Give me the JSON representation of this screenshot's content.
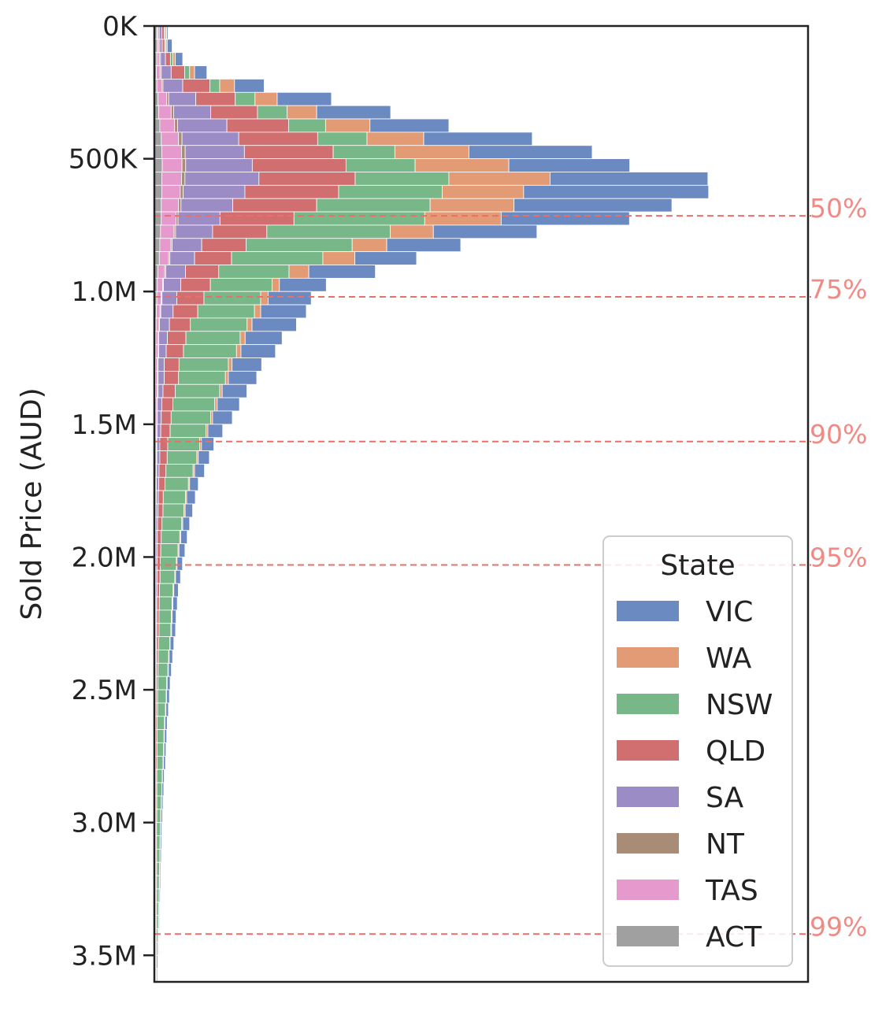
{
  "chart_data": {
    "type": "bar",
    "orientation": "horizontal",
    "stacked": true,
    "ylabel": "Sold Price (AUD)",
    "xlabel": "",
    "ylim": [
      0,
      3600000
    ],
    "y_ticks": [
      {
        "value": 0,
        "label": "0K"
      },
      {
        "value": 500000,
        "label": "500K"
      },
      {
        "value": 1000000,
        "label": "1.0M"
      },
      {
        "value": 1500000,
        "label": "1.5M"
      },
      {
        "value": 2000000,
        "label": "2.0M"
      },
      {
        "value": 2500000,
        "label": "2.5M"
      },
      {
        "value": 3000000,
        "label": "3.0M"
      },
      {
        "value": 3500000,
        "label": "3.5M"
      }
    ],
    "bin_width": 50000,
    "xlim": [
      0,
      2650
    ],
    "legend": {
      "title": "State",
      "placement": "lower-right"
    },
    "series": [
      {
        "name": "ACT",
        "color": "#a0a0a0",
        "values": [
          10,
          12,
          10,
          8,
          10,
          15,
          18,
          22,
          28,
          30,
          32,
          30,
          30,
          28,
          28,
          25,
          22,
          20,
          14,
          12,
          10,
          8,
          7,
          6,
          6,
          5,
          5,
          5,
          4,
          4,
          4,
          3,
          3,
          3,
          3,
          3,
          2,
          2,
          2,
          2,
          2,
          2,
          2,
          2,
          2,
          2,
          2,
          2,
          1,
          1,
          1,
          1,
          1,
          1,
          1,
          1,
          1,
          1,
          1,
          1,
          1,
          1,
          1,
          1,
          1,
          1,
          1,
          1,
          1,
          1,
          1,
          1
        ]
      },
      {
        "name": "TAS",
        "color": "#e699cc",
        "values": [
          5,
          5,
          10,
          15,
          20,
          35,
          50,
          60,
          70,
          80,
          80,
          80,
          75,
          70,
          60,
          55,
          45,
          38,
          28,
          22,
          18,
          15,
          12,
          10,
          10,
          8,
          8,
          8,
          6,
          6,
          5,
          5,
          5,
          5,
          4,
          4,
          4,
          3,
          3,
          3,
          3,
          3,
          3,
          3,
          3,
          3,
          3,
          3,
          3,
          3,
          2,
          2,
          2,
          2,
          2,
          2,
          2,
          2,
          2,
          2,
          2,
          2,
          2,
          2,
          2,
          2,
          2,
          2,
          2,
          2,
          2,
          2
        ]
      },
      {
        "name": "NT",
        "color": "#a88c75",
        "values": [
          5,
          5,
          5,
          5,
          5,
          8,
          10,
          12,
          14,
          15,
          15,
          14,
          12,
          10,
          8,
          6,
          5,
          5,
          4,
          3,
          3,
          3,
          2,
          2,
          2,
          2,
          2,
          2,
          2,
          2,
          2,
          2,
          2,
          1,
          1,
          1,
          1,
          1,
          1,
          1,
          1,
          1,
          1,
          1,
          1,
          1,
          1,
          1,
          1,
          1,
          1,
          1,
          1,
          1,
          1,
          1,
          1,
          1,
          1,
          1,
          1,
          1,
          1,
          1,
          1,
          1,
          1,
          1,
          1,
          1,
          1,
          1
        ]
      },
      {
        "name": "SA",
        "color": "#9c8cc6",
        "values": [
          10,
          10,
          20,
          40,
          80,
          110,
          150,
          200,
          230,
          240,
          270,
          300,
          250,
          210,
          170,
          150,
          120,
          100,
          80,
          70,
          60,
          50,
          40,
          35,
          30,
          25,
          25,
          20,
          18,
          16,
          15,
          12,
          12,
          10,
          10,
          8,
          8,
          7,
          6,
          6,
          5,
          5,
          5,
          4,
          4,
          4,
          3,
          3,
          3,
          3,
          3,
          3,
          2,
          2,
          2,
          2,
          2,
          2,
          2,
          2,
          2,
          2,
          2,
          2,
          2,
          2,
          2,
          2,
          2,
          2,
          2,
          2
        ]
      },
      {
        "name": "QLD",
        "color": "#d06e70",
        "values": [
          10,
          10,
          20,
          55,
          110,
          160,
          190,
          250,
          320,
          360,
          380,
          390,
          380,
          340,
          300,
          220,
          180,
          150,
          135,
          120,
          110,
          100,
          85,
          75,
          70,
          60,
          58,
          50,
          45,
          40,
          38,
          32,
          30,
          28,
          25,
          20,
          20,
          18,
          16,
          14,
          13,
          12,
          10,
          10,
          9,
          9,
          8,
          7,
          7,
          6,
          6,
          6,
          5,
          5,
          5,
          5,
          4,
          4,
          4,
          4,
          3,
          3,
          3,
          3,
          3,
          3,
          3,
          3,
          2,
          2,
          2,
          2
        ]
      },
      {
        "name": "NSW",
        "color": "#78b888",
        "values": [
          5,
          5,
          10,
          20,
          40,
          80,
          120,
          150,
          200,
          250,
          280,
          380,
          420,
          460,
          530,
          500,
          430,
          370,
          285,
          250,
          230,
          230,
          230,
          220,
          215,
          200,
          190,
          180,
          170,
          160,
          145,
          130,
          120,
          110,
          95,
          90,
          85,
          80,
          75,
          70,
          65,
          60,
          55,
          52,
          50,
          48,
          45,
          42,
          40,
          36,
          35,
          32,
          30,
          28,
          26,
          24,
          22,
          20,
          18,
          16,
          15,
          14,
          13,
          12,
          11,
          10,
          9,
          8,
          7,
          6,
          6,
          5
        ]
      },
      {
        "name": "WA",
        "color": "#e39b75",
        "values": [
          5,
          5,
          10,
          20,
          60,
          90,
          120,
          180,
          230,
          300,
          380,
          410,
          330,
          340,
          310,
          175,
          140,
          130,
          80,
          30,
          30,
          25,
          20,
          20,
          18,
          15,
          12,
          10,
          10,
          8,
          8,
          7,
          6,
          6,
          5,
          5,
          5,
          4,
          4,
          4,
          3,
          3,
          3,
          3,
          3,
          3,
          2,
          2,
          2,
          2,
          2,
          2,
          2,
          2,
          2,
          2,
          1,
          1,
          1,
          1,
          1,
          1,
          1,
          1,
          1,
          1,
          1,
          1,
          1,
          1,
          1,
          1
        ]
      },
      {
        "name": "VIC",
        "color": "#6c8ac2",
        "values": [
          5,
          20,
          30,
          50,
          120,
          220,
          300,
          320,
          440,
          500,
          490,
          640,
          750,
          640,
          520,
          420,
          300,
          250,
          270,
          190,
          175,
          185,
          180,
          150,
          140,
          120,
          115,
          100,
          90,
          80,
          60,
          50,
          45,
          40,
          35,
          35,
          30,
          28,
          26,
          24,
          22,
          20,
          18,
          18,
          16,
          16,
          15,
          14,
          12,
          12,
          11,
          10,
          9,
          9,
          8,
          8,
          7,
          7,
          6,
          6,
          5,
          5,
          5,
          4,
          4,
          4,
          3,
          3,
          3,
          3,
          2,
          2
        ]
      }
    ],
    "percentile_lines": [
      {
        "label": "50%",
        "value": 715000
      },
      {
        "label": "75%",
        "value": 1020000
      },
      {
        "label": "90%",
        "value": 1565000
      },
      {
        "label": "95%",
        "value": 2030000
      },
      {
        "label": "99%",
        "value": 3420000
      }
    ],
    "colors": {
      "percentile_line": "#e8706a",
      "percentile_label": "#f08a85"
    }
  }
}
